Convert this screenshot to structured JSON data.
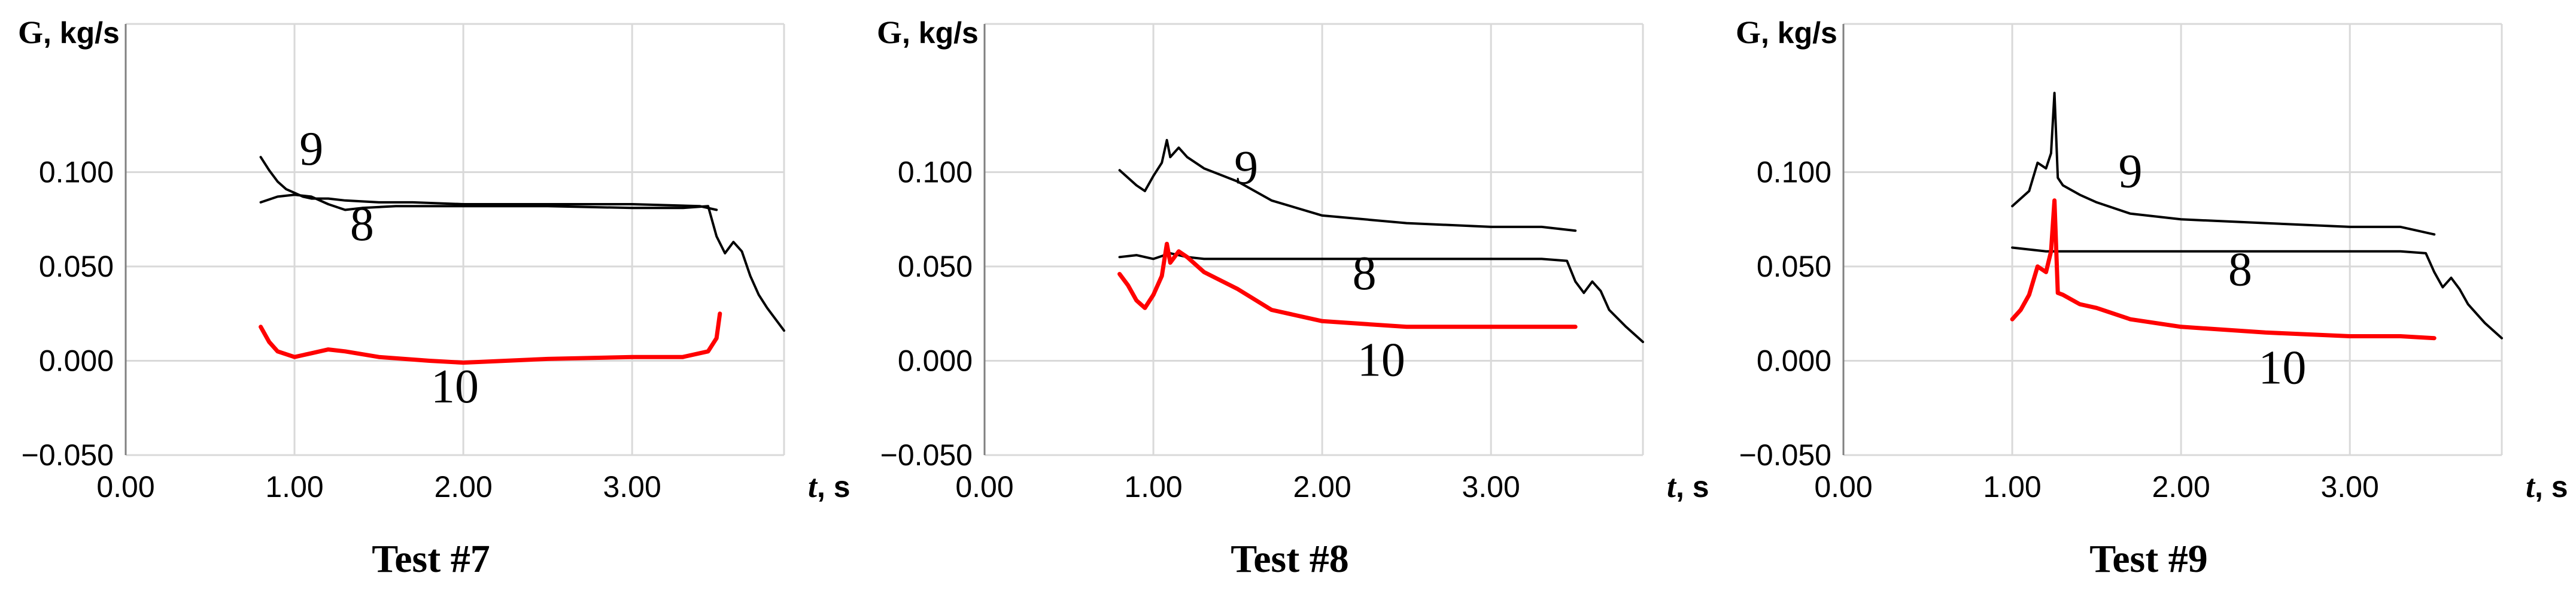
{
  "chart_data": [
    {
      "type": "line",
      "title": "Test #7",
      "xlabel": "t",
      "xlabel_unit": ", s",
      "ylabel": "G",
      "ylabel_unit": ", kg/s",
      "xlim": [
        0,
        3.9
      ],
      "ylim": [
        -0.05,
        0.15
      ],
      "xticks": [
        "0.00",
        "1.00",
        "2.00",
        "3.00"
      ],
      "yticks": [
        "0.100",
        "0.050",
        "0.000",
        "−0.050"
      ],
      "grid": true,
      "series": [
        {
          "name": "9",
          "color": "#000000",
          "x": [
            0.8,
            0.85,
            0.9,
            0.95,
            1.0,
            1.05,
            1.1,
            1.2,
            1.3,
            1.5,
            1.7,
            2.0,
            2.5,
            3.0,
            3.4,
            3.5
          ],
          "y": [
            0.108,
            0.101,
            0.095,
            0.091,
            0.089,
            0.087,
            0.086,
            0.086,
            0.085,
            0.084,
            0.084,
            0.083,
            0.083,
            0.083,
            0.082,
            0.08
          ]
        },
        {
          "name": "8",
          "color": "#000000",
          "x": [
            0.8,
            0.9,
            1.0,
            1.1,
            1.2,
            1.3,
            1.4,
            1.6,
            2.0,
            2.5,
            3.0,
            3.3,
            3.45,
            3.5,
            3.55,
            3.6,
            3.65,
            3.7,
            3.75,
            3.8,
            3.9
          ],
          "y": [
            0.084,
            0.087,
            0.088,
            0.087,
            0.083,
            0.08,
            0.081,
            0.082,
            0.082,
            0.082,
            0.081,
            0.081,
            0.082,
            0.066,
            0.057,
            0.063,
            0.058,
            0.045,
            0.035,
            0.028,
            0.016
          ]
        },
        {
          "name": "10",
          "color": "#ff0000",
          "x": [
            0.8,
            0.85,
            0.9,
            1.0,
            1.1,
            1.2,
            1.3,
            1.5,
            1.8,
            2.0,
            2.5,
            3.0,
            3.3,
            3.45,
            3.5,
            3.52
          ],
          "y": [
            0.018,
            0.01,
            0.005,
            0.002,
            0.004,
            0.006,
            0.005,
            0.002,
            0.0,
            -0.001,
            0.001,
            0.002,
            0.002,
            0.005,
            0.012,
            0.025
          ]
        }
      ],
      "annotations": [
        "9",
        "8",
        "10"
      ]
    },
    {
      "type": "line",
      "title": "Test #8",
      "xlabel": "t",
      "xlabel_unit": ", s",
      "ylabel": "G",
      "ylabel_unit": ", kg/s",
      "xlim": [
        0,
        3.9
      ],
      "ylim": [
        -0.05,
        0.15
      ],
      "xticks": [
        "0.00",
        "1.00",
        "2.00",
        "3.00"
      ],
      "yticks": [
        "0.100",
        "0.050",
        "0.000",
        "−0.050"
      ],
      "grid": true,
      "series": [
        {
          "name": "9",
          "color": "#000000",
          "x": [
            0.8,
            0.85,
            0.9,
            0.95,
            1.0,
            1.05,
            1.08,
            1.1,
            1.15,
            1.2,
            1.3,
            1.5,
            1.7,
            2.0,
            2.5,
            3.0,
            3.3,
            3.5
          ],
          "y": [
            0.101,
            0.097,
            0.093,
            0.09,
            0.098,
            0.105,
            0.117,
            0.108,
            0.113,
            0.108,
            0.102,
            0.095,
            0.085,
            0.077,
            0.073,
            0.071,
            0.071,
            0.069
          ]
        },
        {
          "name": "8",
          "color": "#000000",
          "x": [
            0.8,
            0.9,
            1.0,
            1.1,
            1.2,
            1.3,
            1.5,
            2.0,
            2.5,
            3.0,
            3.3,
            3.45,
            3.5,
            3.55,
            3.6,
            3.65,
            3.7,
            3.8,
            3.9
          ],
          "y": [
            0.055,
            0.056,
            0.054,
            0.057,
            0.055,
            0.054,
            0.054,
            0.054,
            0.054,
            0.054,
            0.054,
            0.053,
            0.042,
            0.036,
            0.042,
            0.037,
            0.027,
            0.018,
            0.01
          ]
        },
        {
          "name": "10",
          "color": "#ff0000",
          "x": [
            0.8,
            0.85,
            0.9,
            0.95,
            1.0,
            1.05,
            1.08,
            1.1,
            1.15,
            1.2,
            1.3,
            1.5,
            1.7,
            2.0,
            2.5,
            3.0,
            3.3,
            3.5
          ],
          "y": [
            0.046,
            0.04,
            0.032,
            0.028,
            0.035,
            0.045,
            0.062,
            0.052,
            0.058,
            0.055,
            0.047,
            0.038,
            0.027,
            0.021,
            0.018,
            0.018,
            0.018,
            0.018
          ]
        }
      ],
      "annotations": [
        "9",
        "8",
        "10"
      ]
    },
    {
      "type": "line",
      "title": "Test #9",
      "xlabel": "t",
      "xlabel_unit": ", s",
      "ylabel": "G",
      "ylabel_unit": ", kg/s",
      "xlim": [
        0,
        3.9
      ],
      "ylim": [
        -0.05,
        0.15
      ],
      "xticks": [
        "0.00",
        "1.00",
        "2.00",
        "3.00"
      ],
      "yticks": [
        "0.100",
        "0.050",
        "0.000",
        "−0.050"
      ],
      "grid": true,
      "series": [
        {
          "name": "9",
          "color": "#000000",
          "x": [
            1.0,
            1.05,
            1.1,
            1.15,
            1.2,
            1.23,
            1.25,
            1.27,
            1.3,
            1.4,
            1.5,
            1.7,
            2.0,
            2.5,
            3.0,
            3.3,
            3.5
          ],
          "y": [
            0.082,
            0.086,
            0.09,
            0.105,
            0.102,
            0.11,
            0.142,
            0.097,
            0.093,
            0.088,
            0.084,
            0.078,
            0.075,
            0.073,
            0.071,
            0.071,
            0.067
          ]
        },
        {
          "name": "8",
          "color": "#000000",
          "x": [
            1.0,
            1.2,
            1.5,
            2.0,
            2.5,
            3.0,
            3.3,
            3.45,
            3.5,
            3.55,
            3.6,
            3.65,
            3.7,
            3.8,
            3.9
          ],
          "y": [
            0.06,
            0.058,
            0.058,
            0.058,
            0.058,
            0.058,
            0.058,
            0.057,
            0.047,
            0.039,
            0.044,
            0.038,
            0.03,
            0.02,
            0.012
          ]
        },
        {
          "name": "10",
          "color": "#ff0000",
          "x": [
            1.0,
            1.05,
            1.1,
            1.15,
            1.2,
            1.23,
            1.25,
            1.27,
            1.3,
            1.4,
            1.5,
            1.7,
            2.0,
            2.5,
            3.0,
            3.3,
            3.5
          ],
          "y": [
            0.022,
            0.027,
            0.035,
            0.05,
            0.047,
            0.058,
            0.085,
            0.036,
            0.035,
            0.03,
            0.028,
            0.022,
            0.018,
            0.015,
            0.013,
            0.013,
            0.012
          ]
        }
      ],
      "annotations": [
        "9",
        "8",
        "10"
      ]
    }
  ]
}
